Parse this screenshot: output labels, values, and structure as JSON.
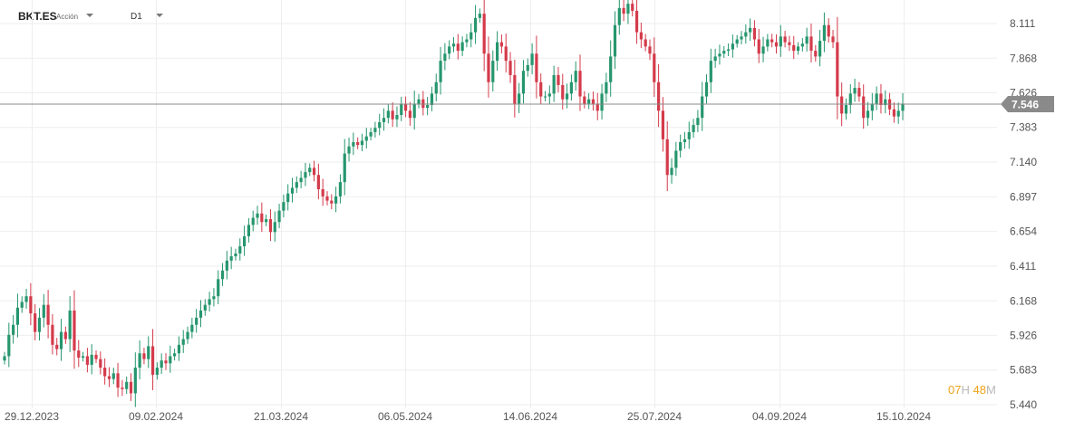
{
  "toolbar": {
    "symbol": "BKT.ES",
    "symbol_type": "Acción",
    "timeframe": "D1"
  },
  "countdown": {
    "hours": "07",
    "hours_unit": "H",
    "minutes": "48",
    "minutes_unit": "M"
  },
  "colors": {
    "up": "#26966e",
    "down": "#d43b4b",
    "grid": "#eeeeee",
    "price_line": "#888888",
    "price_tag": "#8a8a8a",
    "countdown": "#f0a31a"
  },
  "chart_data": {
    "type": "candlestick",
    "symbol": "BKT.ES",
    "timeframe": "D1",
    "current_price": 7.546,
    "y_ticks": [
      8.111,
      7.868,
      7.626,
      7.383,
      7.14,
      6.897,
      6.654,
      6.411,
      6.168,
      5.926,
      5.683,
      5.44
    ],
    "x_ticks": [
      "29.12.2023",
      "09.02.2024",
      "21.03.2024",
      "06.05.2024",
      "14.06.2024",
      "25.07.2024",
      "04.09.2024",
      "15.10.2024"
    ],
    "ylim": [
      5.44,
      8.111
    ],
    "grid": true,
    "closes": [
      5.78,
      5.93,
      6.0,
      6.12,
      6.16,
      6.2,
      6.08,
      5.95,
      6.05,
      6.14,
      6.0,
      5.86,
      5.83,
      5.95,
      5.9,
      6.1,
      5.82,
      5.77,
      5.78,
      5.72,
      5.79,
      5.76,
      5.7,
      5.64,
      5.62,
      5.66,
      5.56,
      5.55,
      5.6,
      5.52,
      5.7,
      5.8,
      5.76,
      5.85,
      5.65,
      5.7,
      5.75,
      5.73,
      5.78,
      5.8,
      5.86,
      5.9,
      5.95,
      6.0,
      6.05,
      6.1,
      6.14,
      6.18,
      6.2,
      6.32,
      6.38,
      6.45,
      6.48,
      6.5,
      6.55,
      6.62,
      6.7,
      6.75,
      6.78,
      6.72,
      6.74,
      6.65,
      6.72,
      6.8,
      6.86,
      6.92,
      6.96,
      7.0,
      7.03,
      7.07,
      7.1,
      7.05,
      6.95,
      6.9,
      6.87,
      6.85,
      6.9,
      7.0,
      7.2,
      7.25,
      7.28,
      7.26,
      7.29,
      7.32,
      7.35,
      7.38,
      7.42,
      7.45,
      7.5,
      7.44,
      7.47,
      7.55,
      7.5,
      7.45,
      7.55,
      7.58,
      7.52,
      7.54,
      7.62,
      7.7,
      7.85,
      7.9,
      7.95,
      7.97,
      7.92,
      7.98,
      8.0,
      8.05,
      8.15,
      8.18,
      7.9,
      7.7,
      7.85,
      7.98,
      7.95,
      7.85,
      7.75,
      7.55,
      7.62,
      7.78,
      7.82,
      7.9,
      7.7,
      7.6,
      7.6,
      7.62,
      7.75,
      7.68,
      7.58,
      7.62,
      7.7,
      7.78,
      7.6,
      7.55,
      7.58,
      7.55,
      7.5,
      7.62,
      7.7,
      7.88,
      8.1,
      8.22,
      8.18,
      8.25,
      8.2,
      8.05,
      8.0,
      7.95,
      7.9,
      7.7,
      7.5,
      7.3,
      7.05,
      7.1,
      7.22,
      7.28,
      7.3,
      7.35,
      7.4,
      7.45,
      7.6,
      7.7,
      7.85,
      7.88,
      7.9,
      7.92,
      7.93,
      7.97,
      8.0,
      8.02,
      8.05,
      8.08,
      8.0,
      7.9,
      7.95,
      8.0,
      7.98,
      7.95,
      8.02,
      7.98,
      7.96,
      7.92,
      7.95,
      7.97,
      8.02,
      7.92,
      7.88,
      7.99,
      8.1,
      8.02,
      7.98,
      7.6,
      7.48,
      7.54,
      7.62,
      7.66,
      7.6,
      7.45,
      7.5,
      7.55,
      7.62,
      7.54,
      7.58,
      7.51,
      7.46,
      7.5,
      7.55
    ]
  }
}
